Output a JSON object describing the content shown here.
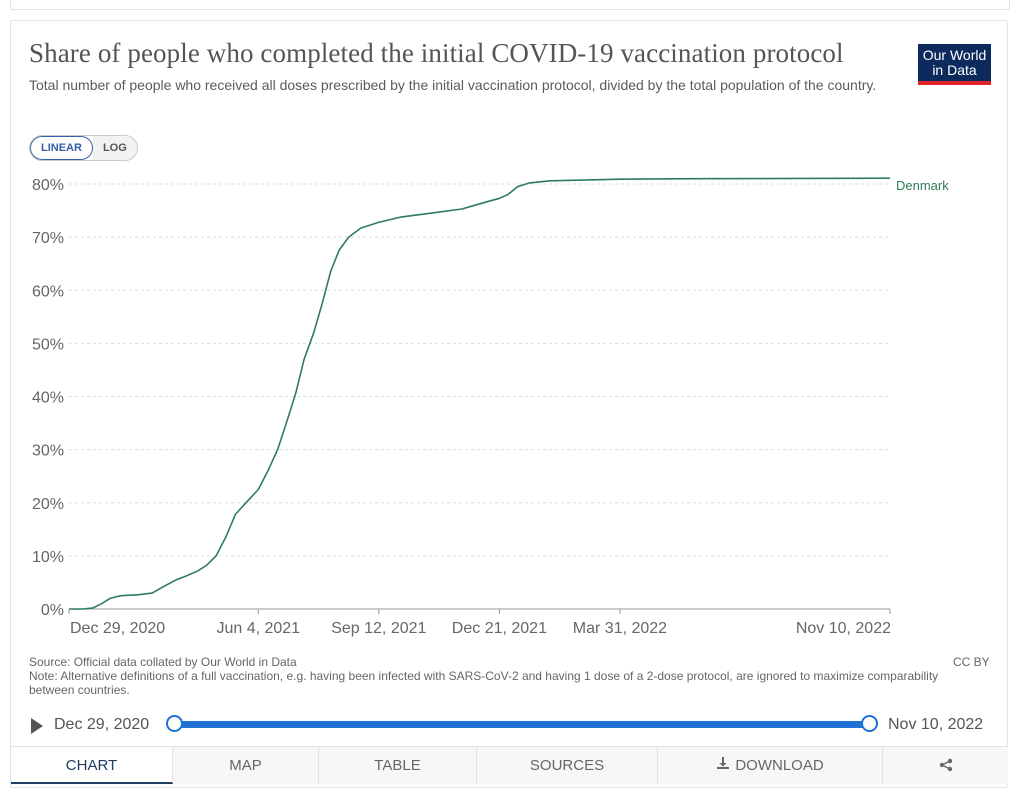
{
  "header": {
    "title": "Share of people who completed the initial COVID-19 vaccination protocol",
    "subtitle": "Total number of people who received all doses prescribed by the initial vaccination protocol, divided by the total population of the country."
  },
  "logo": {
    "line1": "Our World",
    "line2": "in Data"
  },
  "scale_toggle": {
    "linear": "LINEAR",
    "log": "LOG",
    "selected": "LINEAR"
  },
  "colors": {
    "series": "#2f7d58",
    "accent": "#2071d6",
    "logo_bg": "#0c2a5b",
    "logo_bar": "#e0262b"
  },
  "chart_data": {
    "type": "line",
    "title": "Share of people who completed the initial COVID-19 vaccination protocol",
    "ylim": [
      0,
      80
    ],
    "y_ticks": [
      "0%",
      "10%",
      "20%",
      "30%",
      "40%",
      "50%",
      "60%",
      "70%",
      "80%"
    ],
    "y_tick_values": [
      0,
      10,
      20,
      30,
      40,
      50,
      60,
      70,
      80
    ],
    "x_ticks": [
      "Dec 29, 2020",
      "Jun 4, 2021",
      "Sep 12, 2021",
      "Dec 21, 2021",
      "Mar 31, 2022",
      "Nov 10, 2022"
    ],
    "x_tick_dates": [
      "2020-12-29",
      "2021-06-04",
      "2021-09-12",
      "2021-12-21",
      "2022-03-31",
      "2022-11-10"
    ],
    "grid": "horizontal dashed",
    "series": [
      {
        "name": "Denmark",
        "color": "#2f7d58",
        "points": [
          [
            "2020-12-29",
            0.0
          ],
          [
            "2021-01-10",
            0.0
          ],
          [
            "2021-01-18",
            0.2
          ],
          [
            "2021-01-25",
            1.0
          ],
          [
            "2021-02-01",
            2.0
          ],
          [
            "2021-02-10",
            2.5
          ],
          [
            "2021-02-25",
            2.7
          ],
          [
            "2021-03-08",
            3.0
          ],
          [
            "2021-03-18",
            4.3
          ],
          [
            "2021-03-28",
            5.5
          ],
          [
            "2021-04-05",
            6.2
          ],
          [
            "2021-04-15",
            7.2
          ],
          [
            "2021-04-22",
            8.2
          ],
          [
            "2021-04-30",
            10.0
          ],
          [
            "2021-05-08",
            13.5
          ],
          [
            "2021-05-16",
            17.8
          ],
          [
            "2021-05-24",
            19.8
          ],
          [
            "2021-06-04",
            22.5
          ],
          [
            "2021-06-12",
            26.0
          ],
          [
            "2021-06-20",
            30.0
          ],
          [
            "2021-06-28",
            35.5
          ],
          [
            "2021-07-05",
            40.5
          ],
          [
            "2021-07-12",
            47.0
          ],
          [
            "2021-07-20",
            52.0
          ],
          [
            "2021-07-27",
            57.5
          ],
          [
            "2021-08-03",
            63.5
          ],
          [
            "2021-08-10",
            67.5
          ],
          [
            "2021-08-18",
            70.0
          ],
          [
            "2021-08-28",
            71.7
          ],
          [
            "2021-09-12",
            72.8
          ],
          [
            "2021-10-01",
            73.8
          ],
          [
            "2021-10-25",
            74.5
          ],
          [
            "2021-11-20",
            75.3
          ],
          [
            "2021-12-05",
            76.3
          ],
          [
            "2021-12-21",
            77.3
          ],
          [
            "2021-12-28",
            78.0
          ],
          [
            "2022-01-05",
            79.5
          ],
          [
            "2022-01-15",
            80.2
          ],
          [
            "2022-02-01",
            80.6
          ],
          [
            "2022-03-31",
            80.9
          ],
          [
            "2022-06-01",
            81.0
          ],
          [
            "2022-11-10",
            81.1
          ]
        ]
      }
    ]
  },
  "footer": {
    "source": "Source: Official data collated by Our World in Data",
    "note": "Note: Alternative definitions of a full vaccination, e.g. having been infected with SARS-CoV-2 and having 1 dose of a 2-dose protocol, are ignored to maximize comparability between countries.",
    "license": "CC BY"
  },
  "timeline": {
    "start_label": "Dec 29, 2020",
    "end_label": "Nov 10, 2022",
    "start_fraction": 0.0,
    "end_fraction": 1.0
  },
  "tabs": [
    {
      "label": "CHART",
      "active": true
    },
    {
      "label": "MAP",
      "active": false
    },
    {
      "label": "TABLE",
      "active": false
    },
    {
      "label": "SOURCES",
      "active": false
    },
    {
      "label": "DOWNLOAD",
      "active": false
    },
    {
      "label": "",
      "icon": "share-icon",
      "active": false
    }
  ]
}
